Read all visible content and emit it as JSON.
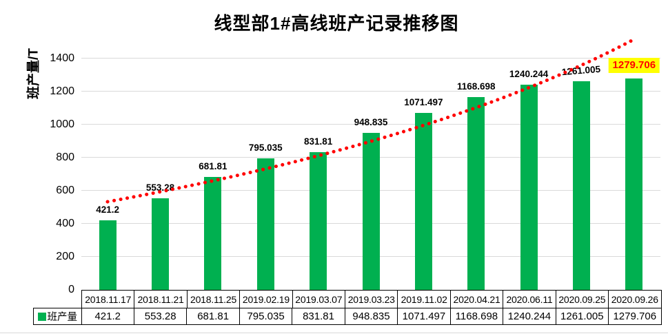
{
  "chart_data": {
    "type": "bar",
    "title": "线型部1#高线班产记录推移图",
    "ylabel": "班产量/T",
    "xlabel": "",
    "categories": [
      "2018.11.17",
      "2018.11.21",
      "2018.11.25",
      "2019.02.19",
      "2019.03.07",
      "2019.03.23",
      "2019.11.02",
      "2020.04.21",
      "2020.06.11",
      "2020.09.25",
      "2020.09.26"
    ],
    "series": [
      {
        "name": "班产量",
        "values": [
          421.2,
          553.28,
          681.81,
          795.035,
          831.81,
          948.835,
          1071.497,
          1168.698,
          1240.244,
          1261.005,
          1279.706
        ]
      }
    ],
    "ylim": [
      0,
      1500
    ],
    "ytick_step": 200,
    "ytick_max": 1400,
    "grid": true,
    "data_labels": true,
    "highlight_last_label": true,
    "legend_position": "bottom-table-left",
    "trendline": {
      "style": "dotted",
      "shape": "curved-upward"
    },
    "data_table_shown": true
  },
  "legend": {
    "label": "班产量"
  },
  "colors": {
    "bar": "#00B050",
    "trend": "#FF0000",
    "highlight_bg": "#FFFF00",
    "highlight_text": "#FF0000",
    "gridline": "#D9D9D9",
    "table_border": "#000000",
    "text": "#000000"
  }
}
